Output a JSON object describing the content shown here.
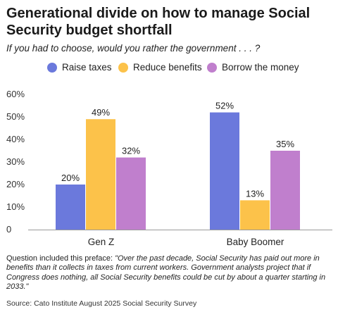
{
  "title": "Generational divide on how to manage Social Security budget shortfall",
  "subtitle": "If you had to choose, would you rather the government . . . ?",
  "note": {
    "prefix": "Question included this preface: ",
    "quote": "\"Over the past decade, Social Security has paid out more in benefits than it collects in taxes from current workers. Government analysts project that if Congress does nothing, all Social Security benefits could be cut by about a quarter starting in 2033.\""
  },
  "source": "Source: Cato Institute August 2025 Social Security Survey",
  "chart_data": {
    "type": "bar",
    "categories": [
      "Gen Z",
      "Baby Boomer"
    ],
    "series": [
      {
        "name": "Raise taxes",
        "color": "#6b79dc",
        "values": [
          20,
          52
        ]
      },
      {
        "name": "Reduce benefits",
        "color": "#fcc24a",
        "values": [
          49,
          13
        ]
      },
      {
        "name": "Borrow the money",
        "color": "#c07fcd",
        "values": [
          32,
          35
        ]
      }
    ],
    "value_labels": [
      [
        "20%",
        "52%"
      ],
      [
        "49%",
        "13%"
      ],
      [
        "32%",
        "35%"
      ]
    ],
    "yticks": [
      "0",
      "10%",
      "20%",
      "30%",
      "40%",
      "50%",
      "60%"
    ],
    "ylim": [
      0,
      60
    ],
    "grid": false,
    "legend": "top"
  }
}
